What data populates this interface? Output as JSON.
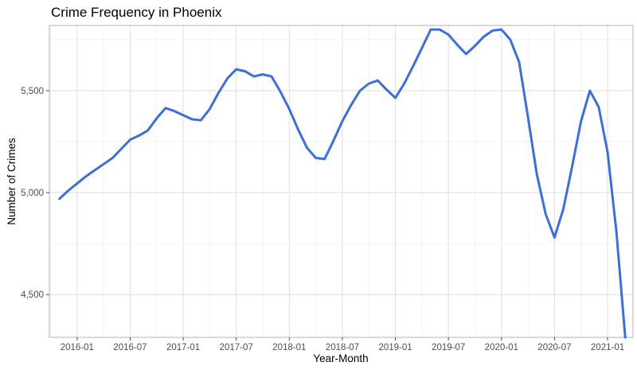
{
  "chart_data": {
    "type": "line",
    "title": "Crime Frequency in Phoenix",
    "xlabel": "Year-Month",
    "ylabel": "Number of Crimes",
    "x_ticks": [
      "2016-01",
      "2016-07",
      "2017-01",
      "2017-07",
      "2018-01",
      "2018-07",
      "2019-01",
      "2019-07",
      "2020-01",
      "2020-07",
      "2021-01"
    ],
    "y_ticks": [
      "4,500",
      "5,000",
      "5,500"
    ],
    "ylim": [
      4290,
      5820
    ],
    "xlim": [
      "2015-09",
      "2021-04"
    ],
    "grid": true,
    "line_color": "#3c6fd8",
    "series": [
      {
        "x": [
          "2015-11",
          "2015-12",
          "2016-01",
          "2016-02",
          "2016-03",
          "2016-04",
          "2016-05",
          "2016-06",
          "2016-07",
          "2016-08",
          "2016-09",
          "2016-10",
          "2016-11",
          "2016-12",
          "2017-01",
          "2017-02",
          "2017-03",
          "2017-04",
          "2017-05",
          "2017-06",
          "2017-07",
          "2017-08",
          "2017-09",
          "2017-10",
          "2017-11",
          "2017-12",
          "2018-01",
          "2018-02",
          "2018-03",
          "2018-04",
          "2018-05",
          "2018-06",
          "2018-07",
          "2018-08",
          "2018-09",
          "2018-10",
          "2018-11",
          "2018-12",
          "2019-01",
          "2019-02",
          "2019-03",
          "2019-04",
          "2019-05",
          "2019-06",
          "2019-07",
          "2019-08",
          "2019-09",
          "2019-10",
          "2019-11",
          "2019-12",
          "2020-01",
          "2020-02",
          "2020-03",
          "2020-04",
          "2020-05",
          "2020-06",
          "2020-07",
          "2020-08",
          "2020-09",
          "2020-10",
          "2020-11",
          "2020-12",
          "2021-01",
          "2021-02",
          "2021-03"
        ],
        "values": [
          4970,
          5010,
          5045,
          5080,
          5110,
          5140,
          5170,
          5215,
          5260,
          5280,
          5305,
          5365,
          5415,
          5400,
          5380,
          5360,
          5355,
          5410,
          5490,
          5560,
          5605,
          5595,
          5570,
          5580,
          5570,
          5495,
          5410,
          5310,
          5220,
          5170,
          5165,
          5255,
          5350,
          5430,
          5500,
          5535,
          5550,
          5505,
          5465,
          5535,
          5620,
          5710,
          5800,
          5800,
          5775,
          5725,
          5680,
          5720,
          5765,
          5795,
          5800,
          5750,
          5640,
          5370,
          5090,
          4895,
          4780,
          4920,
          5130,
          5350,
          5500,
          5420,
          5200,
          4810,
          4290
        ]
      }
    ]
  }
}
